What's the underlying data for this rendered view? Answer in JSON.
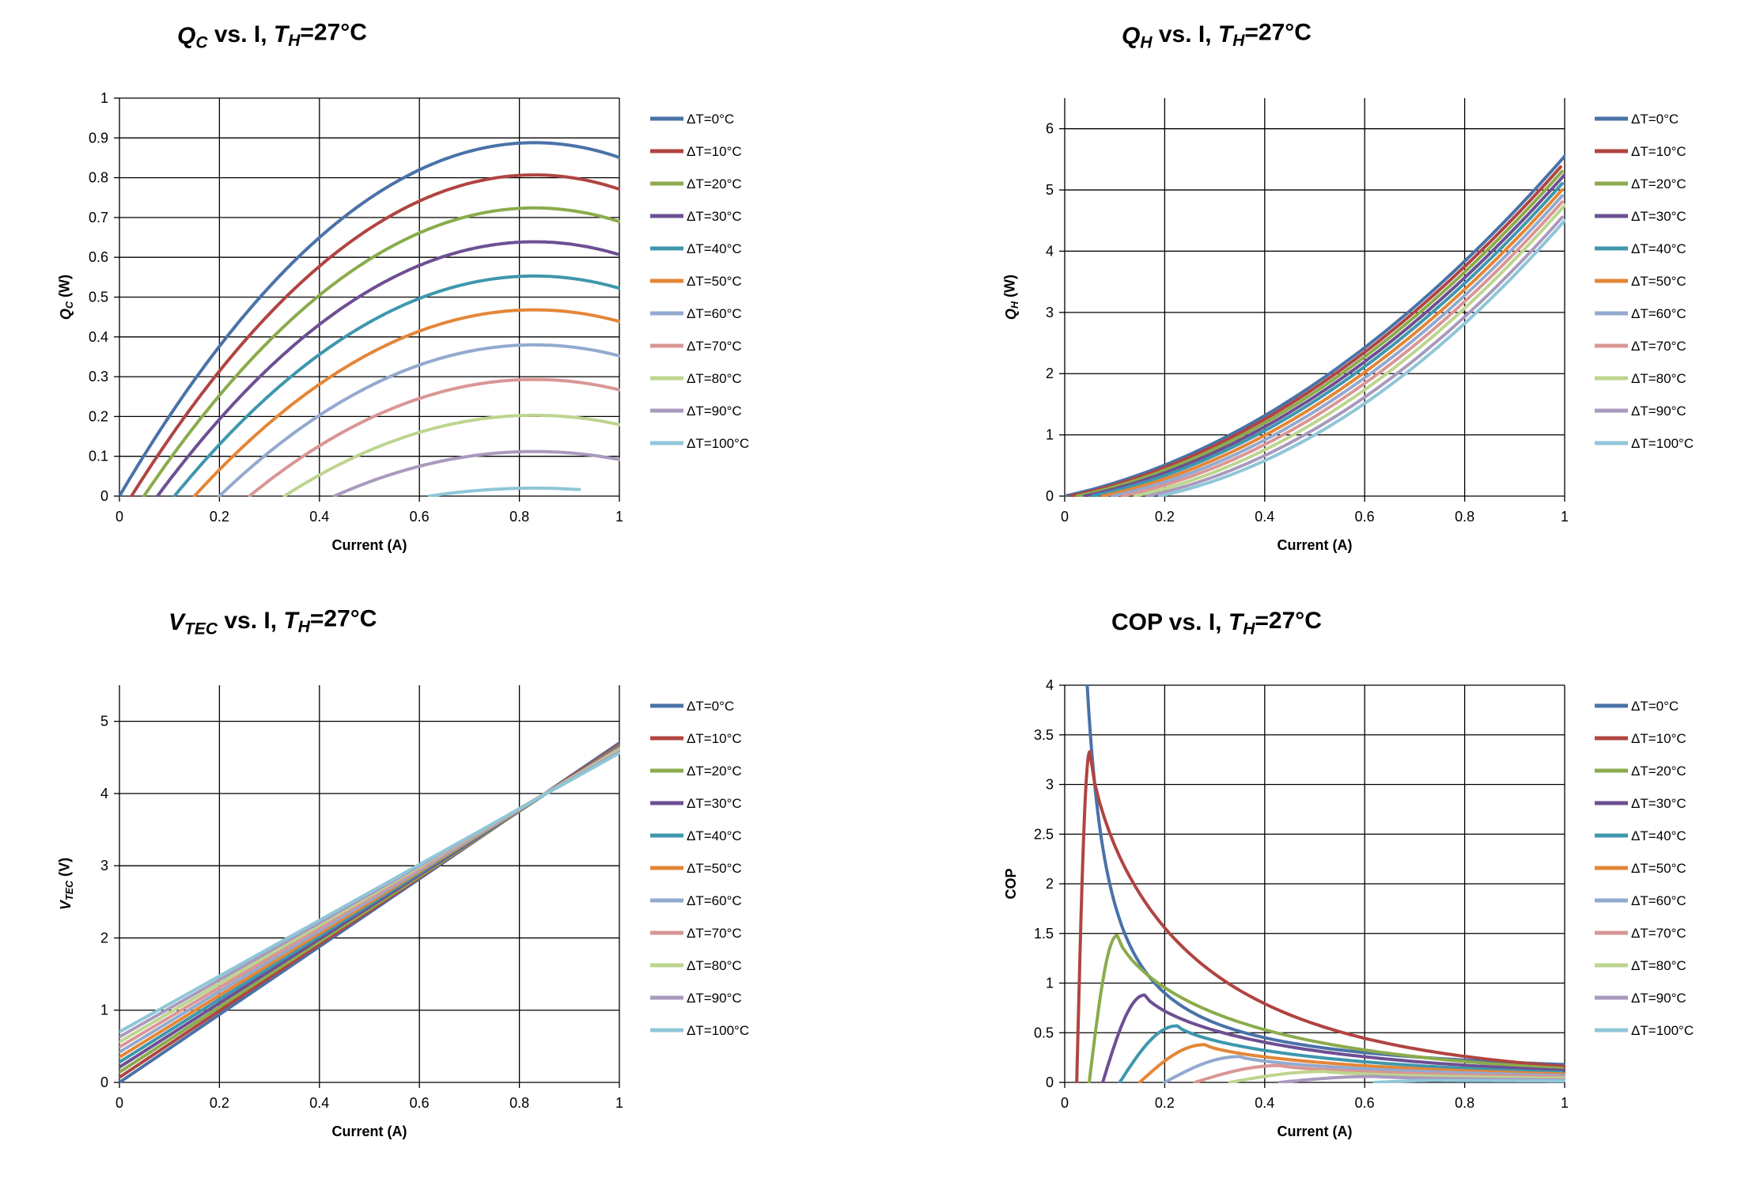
{
  "legend_labels": [
    "ΔT=0°C",
    "ΔT=10°C",
    "ΔT=20°C",
    "ΔT=30°C",
    "ΔT=40°C",
    "ΔT=50°C",
    "ΔT=60°C",
    "ΔT=70°C",
    "ΔT=80°C",
    "ΔT=90°C",
    "ΔT=100°C"
  ],
  "series_colors": [
    "#4a72a8",
    "#b04441",
    "#8bab4c",
    "#6d4f93",
    "#3e97ad",
    "#e48637",
    "#93a9cf",
    "#d99694",
    "#bdd58f",
    "#a99abd",
    "#8fc6d8"
  ],
  "chart_data": [
    {
      "id": "qc",
      "type": "line",
      "title": {
        "main": "Q",
        "sub": "C",
        "rest": " vs. I, ",
        "main2": "T",
        "sub2": "H",
        "rest2": "=27°C"
      },
      "xlabel": "Current (A)",
      "ylabel": {
        "main": "Q",
        "sub": "C",
        "rest": " (W)"
      },
      "xlim": [
        0,
        1
      ],
      "ylim": [
        0,
        1
      ],
      "xticks": [
        "0",
        "0.2",
        "0.4",
        "0.6",
        "0.8",
        "1"
      ],
      "yticks": [
        "0",
        "0.1",
        "0.2",
        "0.3",
        "0.4",
        "0.5",
        "0.6",
        "0.7",
        "0.8",
        "0.9",
        "1"
      ],
      "series_ranges": [
        [
          0,
          1
        ],
        [
          0.024,
          1
        ],
        [
          0.049,
          1
        ],
        [
          0.076,
          1
        ],
        [
          0.11,
          1
        ],
        [
          0.15,
          1
        ],
        [
          0.2,
          1
        ],
        [
          0.26,
          1
        ],
        [
          0.33,
          1
        ],
        [
          0.43,
          1
        ],
        [
          0.62,
          0.92
        ]
      ],
      "peak_values": [
        0.888,
        0.807,
        0.724,
        0.639,
        0.553,
        0.468,
        0.38,
        0.293,
        0.203,
        0.112,
        0.02
      ]
    },
    {
      "id": "qh",
      "type": "line",
      "title": {
        "main": "Q",
        "sub": "H",
        "rest": " vs. I, ",
        "main2": "T",
        "sub2": "H",
        "rest2": "=27°C"
      },
      "xlabel": "Current (A)",
      "ylabel": {
        "main": "Q",
        "sub": "H",
        "rest": " (W)"
      },
      "xlim": [
        0,
        1
      ],
      "ylim": [
        0,
        6.5
      ],
      "xticks": [
        "0",
        "0.2",
        "0.4",
        "0.6",
        "0.8",
        "1"
      ],
      "yticks": [
        "0",
        "1",
        "2",
        "3",
        "4",
        "5",
        "6"
      ],
      "start_x": [
        0,
        0.012,
        0.025,
        0.04,
        0.055,
        0.075,
        0.095,
        0.115,
        0.14,
        0.165,
        0.19
      ],
      "end_values": [
        5.55,
        5.45,
        5.35,
        5.25,
        5.15,
        5.05,
        4.95,
        4.85,
        4.75,
        4.6,
        4.5
      ]
    },
    {
      "id": "vtec",
      "type": "line",
      "title": {
        "main": "V",
        "sub": "TEC",
        "rest": " vs. I, ",
        "main2": "T",
        "sub2": "H",
        "rest2": "=27°C"
      },
      "xlabel": "Current (A)",
      "ylabel": {
        "main": "V",
        "sub": "TEC",
        "rest": " (V)"
      },
      "xlim": [
        0,
        1
      ],
      "ylim": [
        0,
        5.5
      ],
      "xticks": [
        "0",
        "0.2",
        "0.4",
        "0.6",
        "0.8",
        "1"
      ],
      "yticks": [
        "0",
        "1",
        "2",
        "3",
        "4",
        "5"
      ],
      "start_values": [
        0.0,
        0.07,
        0.14,
        0.21,
        0.28,
        0.35,
        0.42,
        0.49,
        0.56,
        0.63,
        0.7
      ],
      "end_values": [
        4.7,
        4.68,
        4.66,
        4.65,
        4.64,
        4.63,
        4.62,
        4.61,
        4.6,
        4.58,
        4.56
      ]
    },
    {
      "id": "cop",
      "type": "line",
      "title": {
        "main": "COP",
        "sub": "",
        "rest": " vs. I, ",
        "main2": "T",
        "sub2": "H",
        "rest2": "=27°C"
      },
      "xlabel": "Current (A)",
      "ylabel": {
        "main": "COP",
        "sub": "",
        "rest": ""
      },
      "xlim": [
        0,
        1
      ],
      "ylim": [
        0,
        4
      ],
      "xticks": [
        "0",
        "0.2",
        "0.4",
        "0.6",
        "0.8",
        "1"
      ],
      "yticks": [
        "0",
        "0.5",
        "1",
        "1.5",
        "2",
        "2.5",
        "3",
        "3.5",
        "4"
      ],
      "onset_x": [
        0,
        0.024,
        0.049,
        0.076,
        0.11,
        0.15,
        0.2,
        0.26,
        0.33,
        0.43,
        0.62
      ],
      "peak_x": [
        0,
        0.05,
        0.105,
        0.16,
        0.225,
        0.28,
        0.35,
        0.43,
        0.52,
        0.62,
        0.75
      ],
      "peak_values": [
        null,
        3.33,
        1.48,
        0.88,
        0.57,
        0.38,
        0.26,
        0.17,
        0.11,
        0.06,
        0.02
      ],
      "end_values": [
        0.18,
        0.16,
        0.14,
        0.12,
        0.1,
        0.085,
        0.07,
        0.055,
        0.04,
        0.025,
        0.015
      ]
    }
  ]
}
